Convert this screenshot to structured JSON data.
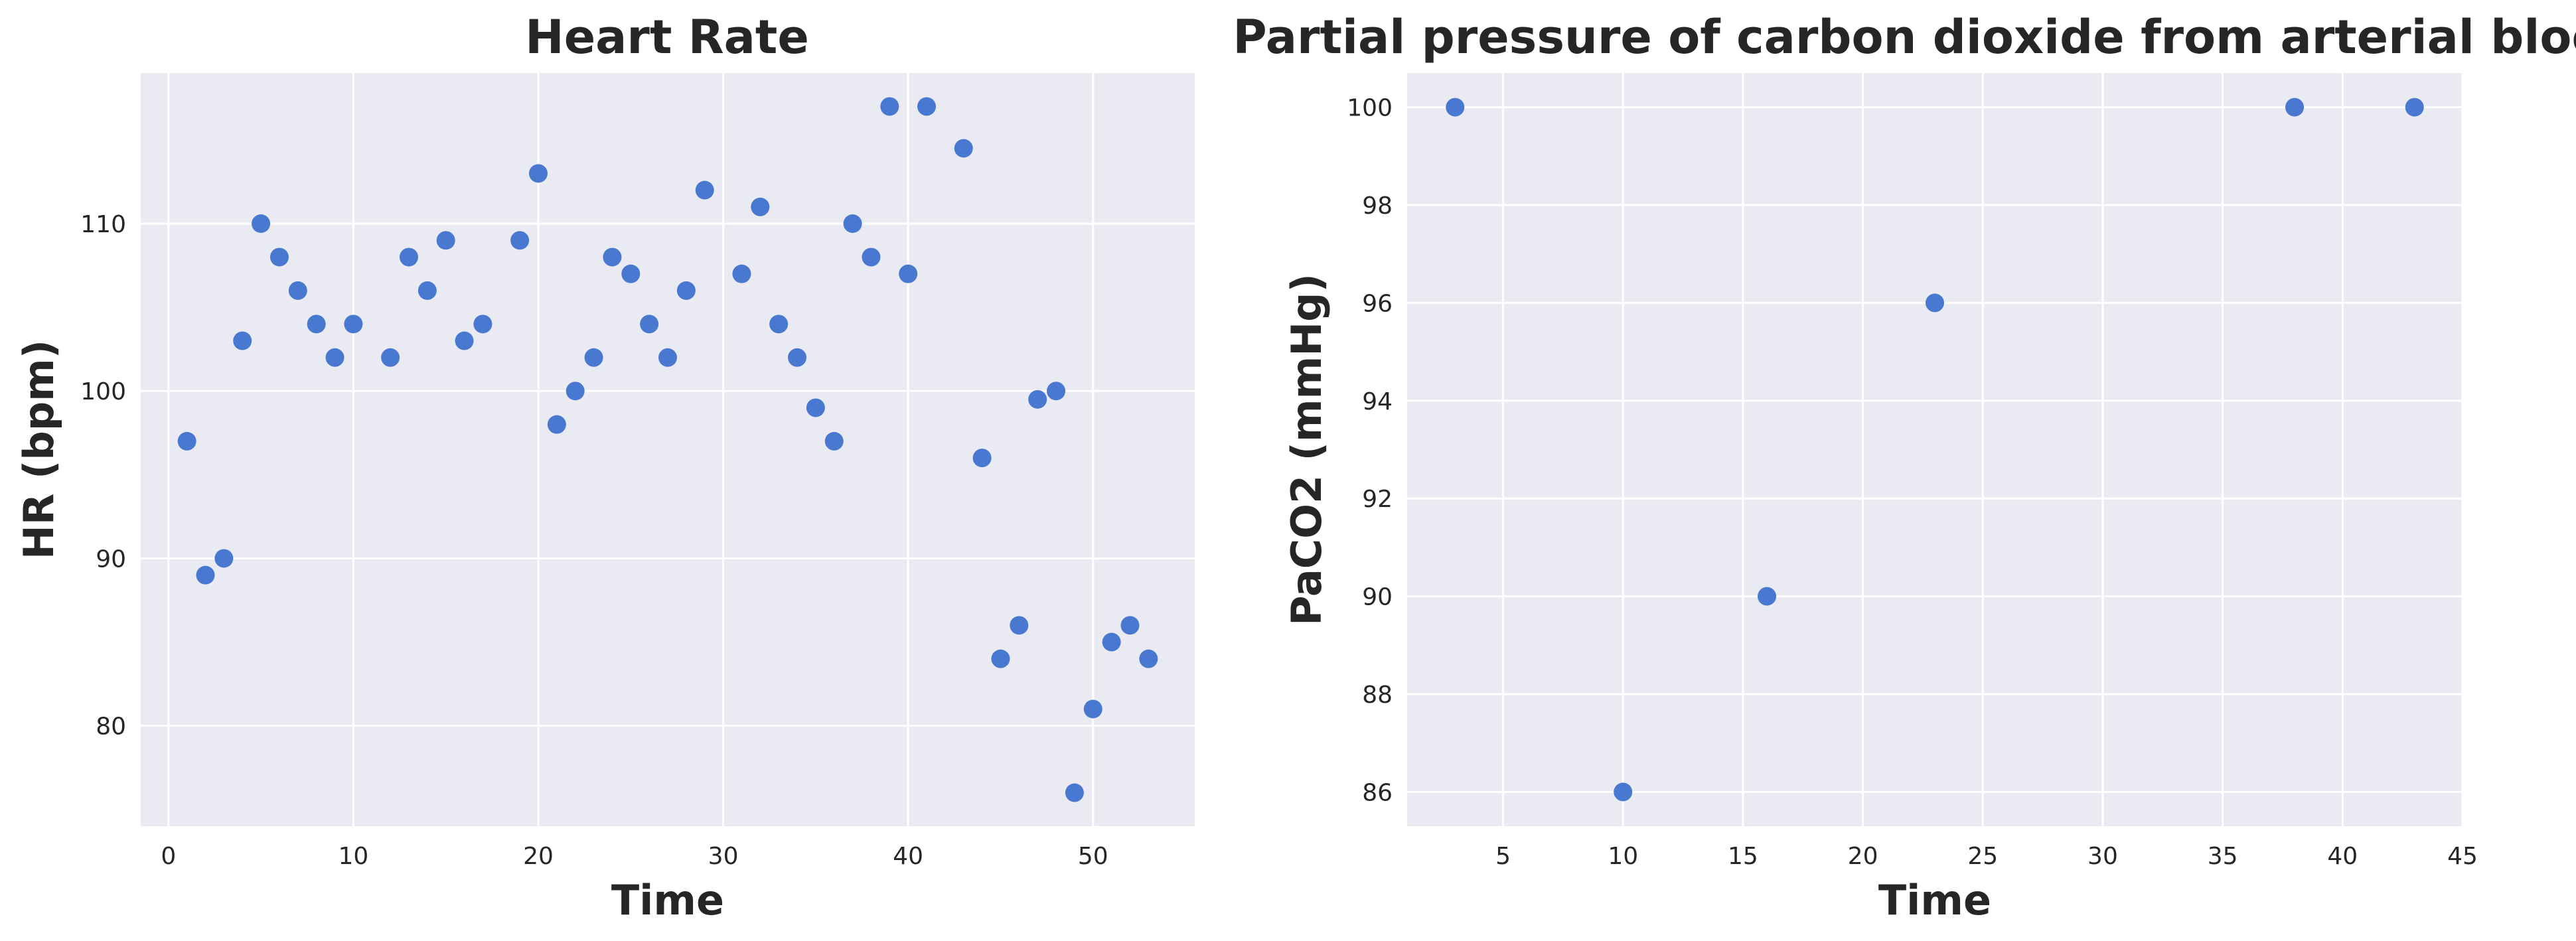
{
  "figure": {
    "point_color": "#4878cf",
    "plot_background": "#eaeaf2",
    "grid_color": "#ffffff"
  },
  "chart_data": [
    {
      "type": "scatter",
      "title": "Heart Rate",
      "xlabel": "Time",
      "ylabel": "HR (bpm)",
      "xlim": [
        -1.5,
        55.5
      ],
      "ylim": [
        74,
        119
      ],
      "xticks": [
        0,
        10,
        20,
        30,
        40,
        50
      ],
      "yticks": [
        80,
        90,
        100,
        110
      ],
      "grid": true,
      "x": [
        1,
        2,
        3,
        4,
        5,
        6,
        7,
        8,
        9,
        10,
        12,
        13,
        14,
        15,
        16,
        17,
        19,
        20,
        21,
        22,
        23,
        24,
        25,
        26,
        27,
        28,
        29,
        31,
        32,
        33,
        34,
        35,
        36,
        37,
        38,
        39,
        40,
        41,
        43,
        44,
        45,
        46,
        47,
        48,
        49,
        50,
        51,
        52,
        53
      ],
      "y": [
        97,
        89,
        90,
        103,
        110,
        108,
        106,
        104,
        102,
        104,
        102,
        108,
        106,
        109,
        103,
        104,
        109,
        113,
        98,
        100,
        102,
        108,
        107,
        104,
        102,
        106,
        112,
        107,
        111,
        104,
        102,
        99,
        97,
        110,
        108,
        117,
        107,
        117,
        114.5,
        96,
        84,
        86,
        99.5,
        100,
        76,
        81,
        85,
        86,
        84
      ]
    },
    {
      "type": "scatter",
      "title": "Partial pressure of carbon dioxide from arterial blood",
      "xlabel": "Time",
      "ylabel": "PaCO2 (mmHg)",
      "xlim": [
        1,
        45
      ],
      "ylim": [
        85.3,
        100.7
      ],
      "xticks": [
        5,
        10,
        15,
        20,
        25,
        30,
        35,
        40,
        45
      ],
      "yticks": [
        86,
        88,
        90,
        92,
        94,
        96,
        98,
        100
      ],
      "grid": true,
      "x": [
        3,
        10,
        16,
        23,
        38,
        43
      ],
      "y": [
        100,
        86,
        90,
        96,
        100,
        100
      ]
    }
  ]
}
